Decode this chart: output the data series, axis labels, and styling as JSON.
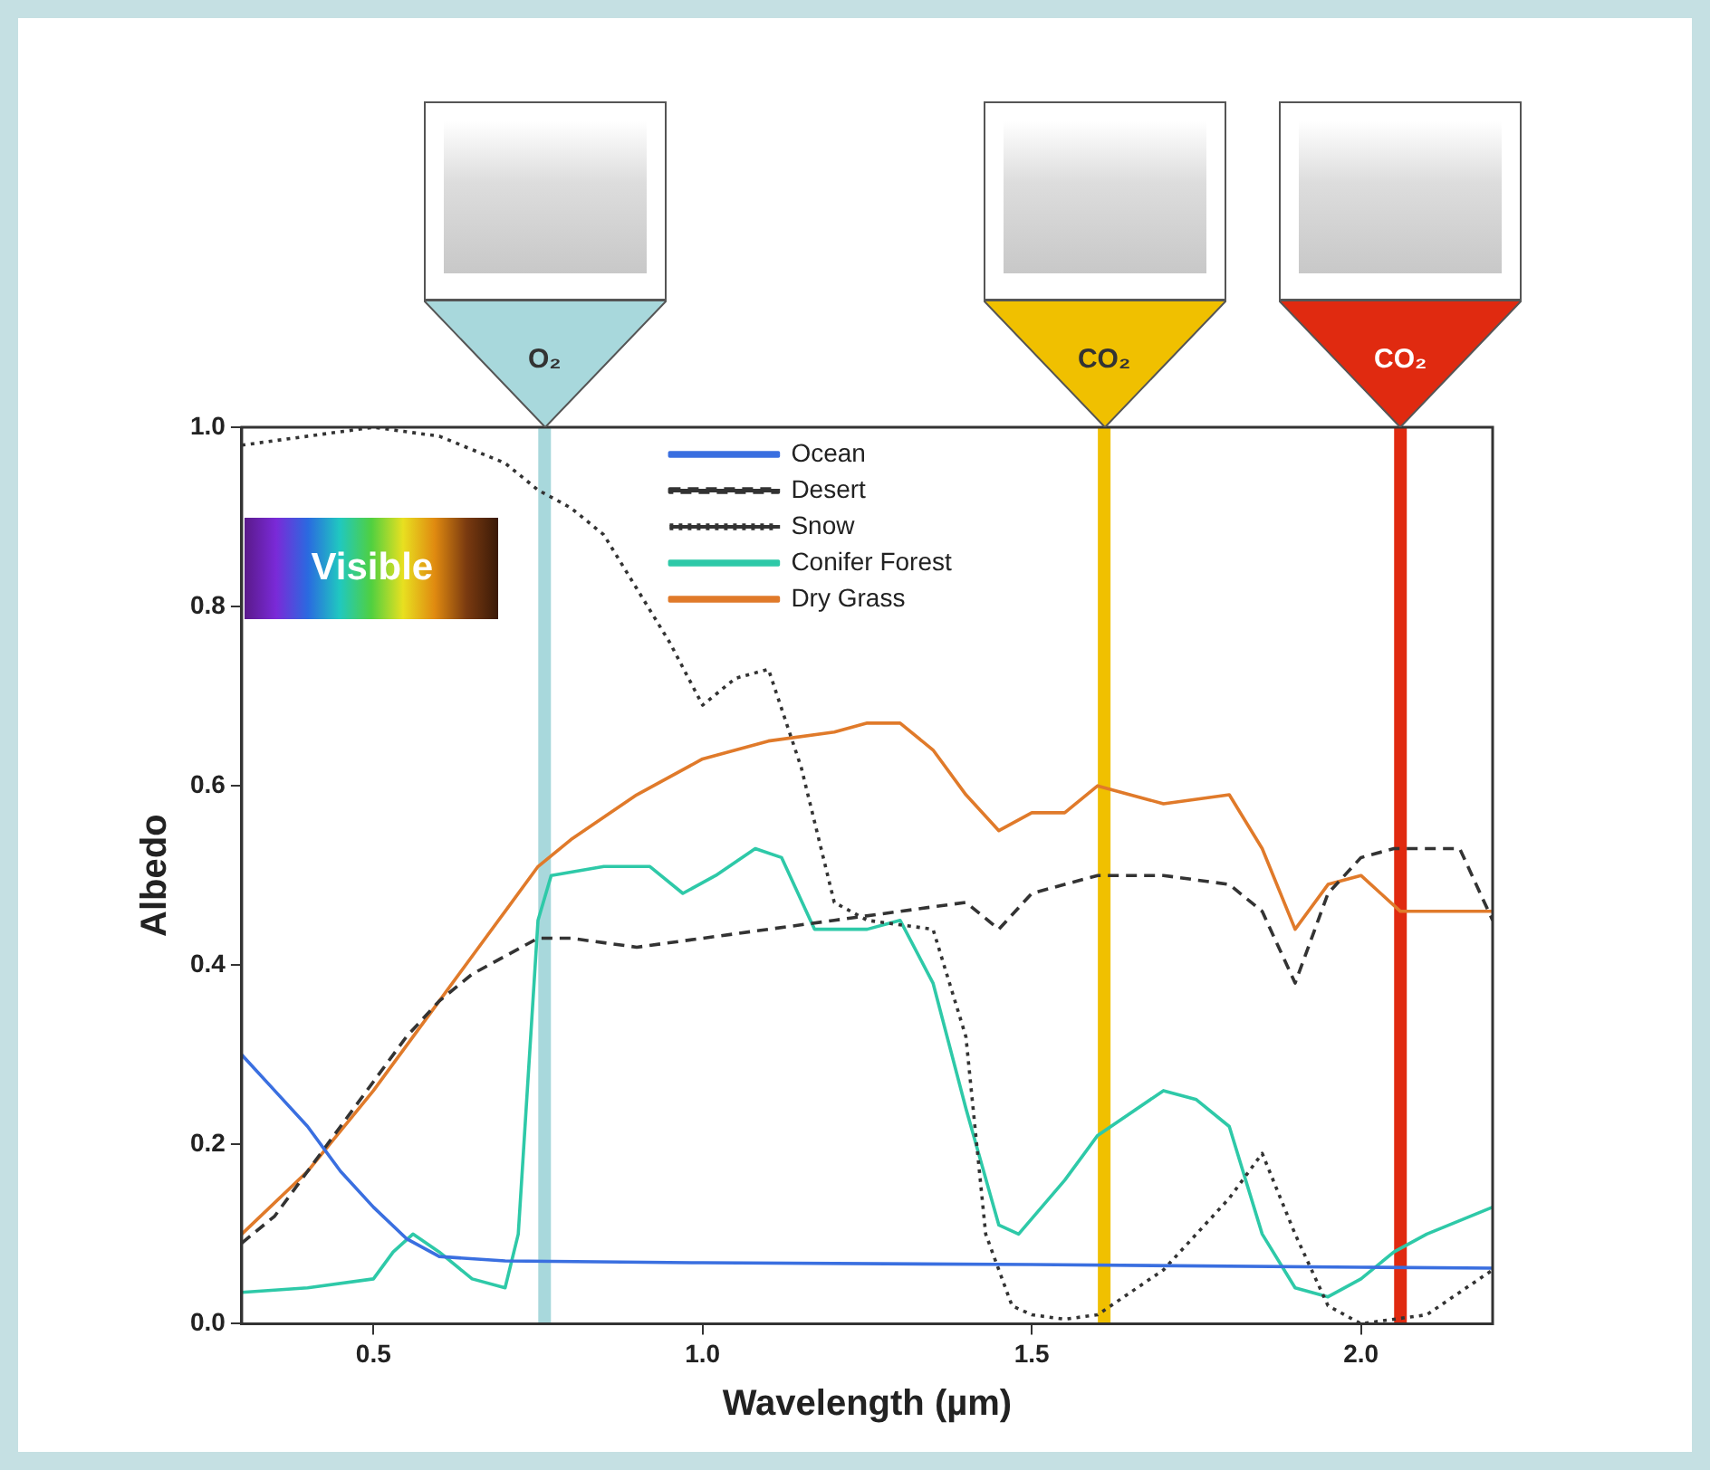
{
  "chart_data": {
    "type": "line",
    "xlabel": "Wavelength (µm)",
    "ylabel": "Albedo",
    "xlim": [
      0.3,
      2.2
    ],
    "ylim": [
      0,
      1
    ],
    "xticks": [
      {
        "value": 0.5,
        "label": "0.5"
      },
      {
        "value": 1,
        "label": "1.0"
      },
      {
        "value": 1.5,
        "label": "1.5"
      },
      {
        "value": 2,
        "label": "2.0"
      }
    ],
    "yticks": [
      {
        "value": 0,
        "label": "0.0"
      },
      {
        "value": 0.2,
        "label": "0.2"
      },
      {
        "value": 0.4,
        "label": "0.4"
      },
      {
        "value": 0.6,
        "label": "0.6"
      },
      {
        "value": 0.8,
        "label": "0.8"
      },
      {
        "value": 1,
        "label": "1.0"
      }
    ],
    "grid": false,
    "legend": "top",
    "marker": "none",
    "annotations": [
      "Visible"
    ],
    "ref_lines": [
      {
        "axis": "x",
        "value": 0.76,
        "label": "O₂",
        "color": "#a8d8dc"
      },
      {
        "axis": "x",
        "value": 1.61,
        "label": "CO₂",
        "color": "#f0c000"
      },
      {
        "axis": "x",
        "value": 2.06,
        "label": "CO₂",
        "color": "#e02a10"
      }
    ],
    "series": [
      {
        "name": "Ocean",
        "color": "#3a6fe0",
        "line_style": "solid",
        "x": [
          0.3,
          0.35,
          0.4,
          0.45,
          0.5,
          0.55,
          0.6,
          0.7,
          1.0,
          1.5,
          2.0,
          2.2
        ],
        "values": [
          0.3,
          0.26,
          0.22,
          0.17,
          0.13,
          0.095,
          0.075,
          0.07,
          0.068,
          0.066,
          0.063,
          0.062
        ]
      },
      {
        "name": "Desert",
        "color": "#333333",
        "line_style": "dashed",
        "x": [
          0.3,
          0.35,
          0.4,
          0.45,
          0.5,
          0.55,
          0.6,
          0.65,
          0.7,
          0.75,
          0.8,
          0.9,
          1.0,
          1.1,
          1.2,
          1.3,
          1.4,
          1.45,
          1.5,
          1.6,
          1.7,
          1.8,
          1.85,
          1.9,
          1.95,
          2.0,
          2.05,
          2.15,
          2.2
        ],
        "values": [
          0.09,
          0.12,
          0.17,
          0.22,
          0.27,
          0.32,
          0.36,
          0.39,
          0.41,
          0.43,
          0.43,
          0.42,
          0.43,
          0.44,
          0.45,
          0.46,
          0.47,
          0.44,
          0.48,
          0.5,
          0.5,
          0.49,
          0.46,
          0.38,
          0.48,
          0.52,
          0.53,
          0.53,
          0.45
        ]
      },
      {
        "name": "Snow",
        "color": "#333333",
        "line_style": "dotted",
        "x": [
          0.3,
          0.4,
          0.5,
          0.6,
          0.7,
          0.75,
          0.8,
          0.85,
          0.9,
          0.95,
          1.0,
          1.05,
          1.1,
          1.15,
          1.2,
          1.25,
          1.35,
          1.4,
          1.43,
          1.47,
          1.5,
          1.55,
          1.6,
          1.7,
          1.8,
          1.85,
          1.9,
          1.95,
          2.0,
          2.1,
          2.2
        ],
        "values": [
          0.98,
          0.99,
          1.0,
          0.99,
          0.96,
          0.93,
          0.91,
          0.88,
          0.82,
          0.76,
          0.69,
          0.72,
          0.73,
          0.62,
          0.47,
          0.45,
          0.44,
          0.32,
          0.1,
          0.02,
          0.01,
          0.005,
          0.01,
          0.06,
          0.14,
          0.19,
          0.1,
          0.02,
          0,
          0.01,
          0.06
        ]
      },
      {
        "name": "Conifer Forest",
        "color": "#2ec9a8",
        "line_style": "solid",
        "x": [
          0.3,
          0.4,
          0.5,
          0.53,
          0.56,
          0.6,
          0.65,
          0.7,
          0.72,
          0.75,
          0.77,
          0.85,
          0.92,
          0.97,
          1.02,
          1.08,
          1.12,
          1.17,
          1.25,
          1.3,
          1.35,
          1.4,
          1.45,
          1.48,
          1.55,
          1.6,
          1.7,
          1.75,
          1.8,
          1.85,
          1.9,
          1.95,
          2.0,
          2.05,
          2.1,
          2.2
        ],
        "values": [
          0.035,
          0.04,
          0.05,
          0.08,
          0.1,
          0.08,
          0.05,
          0.04,
          0.1,
          0.45,
          0.5,
          0.51,
          0.51,
          0.48,
          0.5,
          0.53,
          0.52,
          0.44,
          0.44,
          0.45,
          0.38,
          0.24,
          0.11,
          0.1,
          0.16,
          0.21,
          0.26,
          0.25,
          0.22,
          0.1,
          0.04,
          0.03,
          0.05,
          0.08,
          0.1,
          0.13
        ]
      },
      {
        "name": "Dry Grass",
        "color": "#e07a2a",
        "line_style": "solid",
        "x": [
          0.3,
          0.4,
          0.5,
          0.6,
          0.7,
          0.75,
          0.8,
          0.9,
          1.0,
          1.1,
          1.2,
          1.25,
          1.3,
          1.35,
          1.4,
          1.45,
          1.5,
          1.55,
          1.6,
          1.7,
          1.8,
          1.85,
          1.9,
          1.95,
          2.0,
          2.03,
          2.06,
          2.15,
          2.2
        ],
        "values": [
          0.1,
          0.17,
          0.26,
          0.36,
          0.46,
          0.51,
          0.54,
          0.59,
          0.63,
          0.65,
          0.66,
          0.67,
          0.67,
          0.64,
          0.59,
          0.55,
          0.57,
          0.57,
          0.6,
          0.58,
          0.59,
          0.53,
          0.44,
          0.49,
          0.5,
          0.48,
          0.46,
          0.46,
          0.46
        ]
      }
    ]
  }
}
